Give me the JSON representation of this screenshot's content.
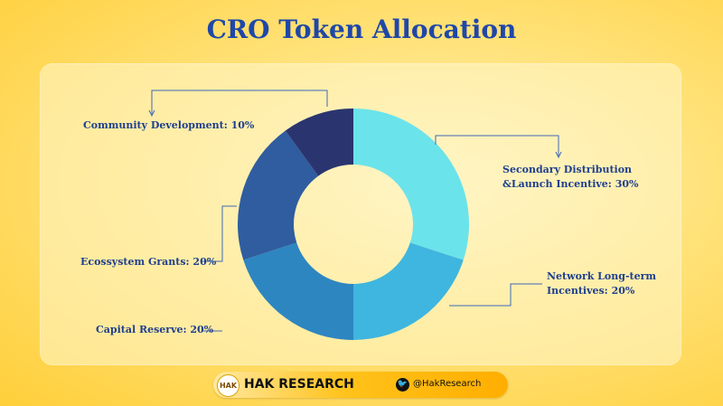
{
  "chart_data": {
    "type": "pie",
    "title": "CRO Token Allocation",
    "slices": [
      {
        "label": "Secondary Distribution &Launch Incentive: 30%",
        "line1": "Secondary Distribution",
        "line2": "&Launch Incentive: 30%",
        "value": 30,
        "color": "#6be3ea"
      },
      {
        "label": "Network Long-term Incentives: 20%",
        "line1": "Network Long-term",
        "line2": "Incentives: 20%",
        "value": 20,
        "color": "#3fb6df"
      },
      {
        "label": "Capital Reserve: 20%",
        "line1": "Capital Reserve: 20%",
        "line2": "",
        "value": 20,
        "color": "#2e86c1"
      },
      {
        "label": "Ecossystem Grants: 20%",
        "line1": "Ecossystem Grants: 20%",
        "line2": "",
        "value": 20,
        "color": "#2f5d9f"
      },
      {
        "label": "Community Development: 10%",
        "line1": "Community Development: 10%",
        "line2": "",
        "value": 10,
        "color": "#2a3570"
      }
    ]
  },
  "footer": {
    "logo_text": "HAK",
    "brand": "HAK RESEARCH",
    "twitter_handle": "@HakResearch"
  },
  "colors": {
    "title": "#1f47a8",
    "label": "#1f3f8f",
    "leader": "#3f67b8"
  }
}
